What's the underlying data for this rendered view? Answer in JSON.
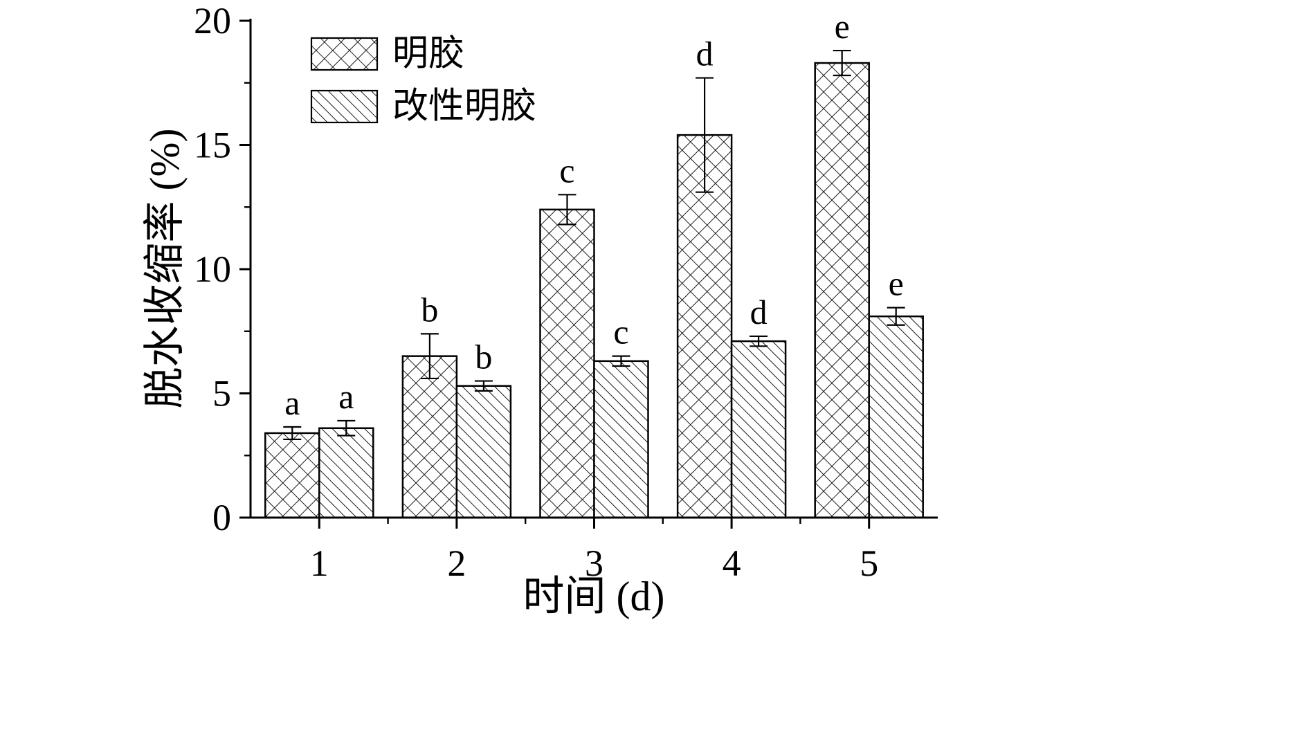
{
  "figure": {
    "background": "#ffffff",
    "axis_color": "#000000"
  },
  "chart_data": {
    "type": "bar",
    "title": "",
    "xlabel": "时间 (d)",
    "ylabel": "脱水收缩率 (%)",
    "ylim": [
      0,
      20
    ],
    "yticks": [
      0,
      5,
      10,
      15,
      20
    ],
    "y_minor_step": 2.5,
    "categories": [
      "1",
      "2",
      "3",
      "4",
      "5"
    ],
    "grid": false,
    "legend_position": "top-left-inside",
    "bar_fill": "#ffffff",
    "bar_stroke": "#000000",
    "series": [
      {
        "name": "明胶",
        "hatch": "crosshatch",
        "values": [
          3.4,
          6.5,
          12.4,
          15.4,
          18.3
        ],
        "errors": [
          0.25,
          0.9,
          0.6,
          2.3,
          0.5
        ],
        "sig_labels": [
          "a",
          "b",
          "c",
          "d",
          "e"
        ]
      },
      {
        "name": "改性明胶",
        "hatch": "diagonal",
        "values": [
          3.6,
          5.3,
          6.3,
          7.1,
          8.1
        ],
        "errors": [
          0.3,
          0.2,
          0.2,
          0.2,
          0.35
        ],
        "sig_labels": [
          "a",
          "b",
          "c",
          "d",
          "e"
        ]
      }
    ]
  }
}
